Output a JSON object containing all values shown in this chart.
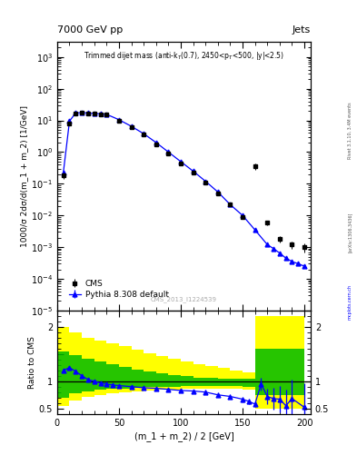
{
  "title_top": "7000 GeV pp",
  "title_right": "Jets",
  "annotation": "Trimmed dijet mass (anti-k$_T$(0.7), 2450<p$_T$<500, |y|<2.5)",
  "watermark": "CMS_2013_I1224539",
  "rivet_label": "Rivet 3.1.10, 3.4M events",
  "arxiv_label": "mcplots.cern.ch [arXiv:1306.3436]",
  "ylabel_main": "1000/σ 2dσ/d(m_1 + m_2) [1/GeV]",
  "ylabel_ratio": "Ratio to CMS",
  "xlabel": "(m_1 + m_2) / 2 [GeV]",
  "xlim": [
    0,
    205
  ],
  "ylim_main": [
    1e-05,
    3000.0
  ],
  "ylim_ratio": [
    0.4,
    2.3
  ],
  "cms_x": [
    5,
    10,
    15,
    20,
    25,
    30,
    35,
    40,
    50,
    60,
    70,
    80,
    90,
    100,
    110,
    120,
    130,
    140,
    150,
    160,
    170,
    180,
    190,
    200
  ],
  "cms_y": [
    0.18,
    8.0,
    16.0,
    17.0,
    16.5,
    16.0,
    15.5,
    15.0,
    10.0,
    6.0,
    3.5,
    1.8,
    0.9,
    0.45,
    0.22,
    0.11,
    0.05,
    0.022,
    0.009,
    0.35,
    0.006,
    0.0018,
    0.0012,
    0.001
  ],
  "cms_yerr_lo": [
    0.04,
    1.0,
    1.5,
    1.5,
    1.5,
    1.3,
    1.2,
    1.2,
    0.8,
    0.5,
    0.3,
    0.15,
    0.07,
    0.04,
    0.018,
    0.009,
    0.004,
    0.002,
    0.001,
    0.08,
    0.001,
    0.0004,
    0.0003,
    0.0003
  ],
  "cms_yerr_hi": [
    0.04,
    1.0,
    1.5,
    1.5,
    1.5,
    1.3,
    1.2,
    1.2,
    0.8,
    0.5,
    0.3,
    0.15,
    0.07,
    0.04,
    0.018,
    0.009,
    0.004,
    0.002,
    0.001,
    0.08,
    0.001,
    0.0004,
    0.0003,
    0.0003
  ],
  "pythia_x": [
    5,
    10,
    15,
    20,
    25,
    30,
    35,
    40,
    50,
    60,
    70,
    80,
    90,
    100,
    110,
    120,
    130,
    140,
    150,
    160,
    170,
    175,
    180,
    185,
    190,
    195,
    200
  ],
  "pythia_y": [
    0.22,
    9.5,
    17.0,
    17.5,
    17.0,
    16.5,
    16.0,
    15.5,
    10.5,
    6.5,
    3.8,
    2.0,
    1.0,
    0.5,
    0.25,
    0.12,
    0.055,
    0.022,
    0.01,
    0.0035,
    0.0012,
    0.0009,
    0.00065,
    0.00045,
    0.00035,
    0.0003,
    0.00025
  ],
  "pythia_yerr": [
    0.02,
    0.5,
    1.0,
    0.8,
    0.8,
    0.8,
    0.7,
    0.7,
    0.5,
    0.3,
    0.15,
    0.09,
    0.04,
    0.02,
    0.01,
    0.005,
    0.002,
    0.001,
    0.0004,
    0.0002,
    0.0001,
    8e-05,
    6e-05,
    5e-05,
    4e-05,
    3e-05,
    3e-05
  ],
  "ratio_x": [
    5,
    10,
    15,
    20,
    25,
    30,
    35,
    40,
    45,
    50,
    60,
    70,
    80,
    90,
    100,
    110,
    120,
    130,
    140,
    150,
    155,
    160,
    165,
    170,
    175,
    180,
    185,
    190,
    200
  ],
  "ratio_y": [
    1.2,
    1.25,
    1.18,
    1.1,
    1.03,
    1.0,
    0.97,
    0.95,
    0.93,
    0.92,
    0.9,
    0.88,
    0.87,
    0.85,
    0.83,
    0.82,
    0.8,
    0.75,
    0.72,
    0.67,
    0.63,
    0.58,
    0.95,
    0.72,
    0.68,
    0.67,
    0.55,
    0.68,
    0.52
  ],
  "ratio_yerr_lo": [
    0.03,
    0.03,
    0.03,
    0.03,
    0.03,
    0.03,
    0.03,
    0.03,
    0.03,
    0.03,
    0.03,
    0.03,
    0.03,
    0.03,
    0.03,
    0.03,
    0.04,
    0.04,
    0.04,
    0.05,
    0.05,
    0.05,
    0.12,
    0.15,
    0.2,
    0.25,
    0.3,
    0.35,
    0.45
  ],
  "ratio_yerr_hi": [
    0.03,
    0.03,
    0.03,
    0.03,
    0.03,
    0.03,
    0.03,
    0.03,
    0.03,
    0.03,
    0.03,
    0.03,
    0.03,
    0.03,
    0.03,
    0.03,
    0.04,
    0.04,
    0.04,
    0.05,
    0.05,
    0.05,
    0.12,
    0.15,
    0.2,
    0.25,
    0.3,
    0.35,
    0.45
  ],
  "band_yellow_edges": [
    0,
    10,
    20,
    30,
    40,
    50,
    60,
    70,
    80,
    90,
    100,
    110,
    120,
    130,
    140,
    150,
    160,
    170,
    180,
    190,
    200
  ],
  "band_yellow_lo": [
    0.55,
    0.65,
    0.72,
    0.75,
    0.78,
    0.8,
    0.82,
    0.83,
    0.84,
    0.85,
    0.86,
    0.87,
    0.87,
    0.87,
    0.86,
    0.84,
    0.5,
    0.5,
    0.5,
    0.5,
    0.5
  ],
  "band_yellow_hi": [
    2.0,
    1.9,
    1.8,
    1.75,
    1.7,
    1.65,
    1.58,
    1.52,
    1.47,
    1.42,
    1.37,
    1.32,
    1.28,
    1.24,
    1.2,
    1.16,
    2.2,
    2.2,
    2.2,
    2.2,
    2.2
  ],
  "band_green_edges": [
    0,
    10,
    20,
    30,
    40,
    50,
    60,
    70,
    80,
    90,
    100,
    110,
    120,
    130,
    140,
    150,
    160,
    170,
    180,
    190,
    200
  ],
  "band_green_lo": [
    0.7,
    0.78,
    0.82,
    0.84,
    0.86,
    0.87,
    0.88,
    0.89,
    0.9,
    0.9,
    0.91,
    0.91,
    0.92,
    0.92,
    0.91,
    0.9,
    0.75,
    0.75,
    0.75,
    0.75,
    0.75
  ],
  "band_green_hi": [
    1.55,
    1.48,
    1.42,
    1.37,
    1.32,
    1.27,
    1.22,
    1.18,
    1.14,
    1.11,
    1.09,
    1.07,
    1.06,
    1.05,
    1.05,
    1.05,
    1.6,
    1.6,
    1.6,
    1.6,
    1.6
  ],
  "color_cms": "black",
  "color_pythia": "blue",
  "color_yellow": "#ffff00",
  "color_green": "#00bb00",
  "legend_cms": "CMS",
  "legend_pythia": "Pythia 8.308 default"
}
